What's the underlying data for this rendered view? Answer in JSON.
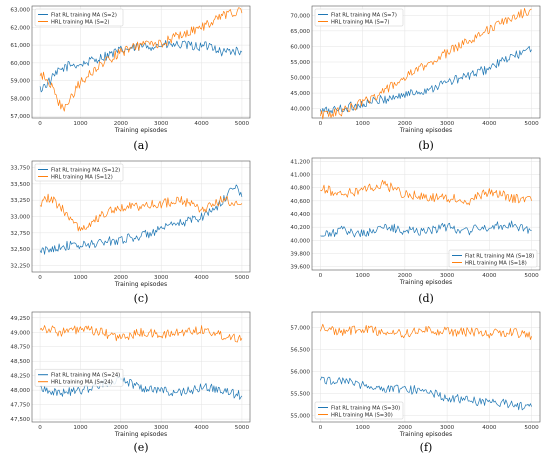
{
  "colors": {
    "flat": "#1f77b4",
    "hrl": "#ff7f0e"
  },
  "chart_data": [
    {
      "type": "line",
      "caption": "(a)",
      "xlabel": "Training episodes",
      "xlim": [
        -200,
        5200
      ],
      "ylim": [
        56900,
        63200
      ],
      "xticks": [
        0,
        1000,
        2000,
        3000,
        4000,
        5000
      ],
      "yticks": [
        57000,
        58000,
        59000,
        60000,
        61000,
        62000,
        63000
      ],
      "legend": "top-left",
      "grid": true,
      "series": [
        {
          "name": "Flat RL training MA (S=2)",
          "color": "flat",
          "x": [
            0,
            250,
            500,
            750,
            1000,
            1500,
            2000,
            2500,
            3000,
            3500,
            4000,
            4250,
            4500,
            4750,
            5000
          ],
          "y": [
            58500,
            59000,
            59600,
            59900,
            59900,
            60300,
            60700,
            60900,
            61000,
            61000,
            60900,
            61000,
            60600,
            60700,
            60600
          ]
        },
        {
          "name": "HRL training MA (S=2)",
          "color": "hrl",
          "x": [
            0,
            200,
            400,
            600,
            800,
            1000,
            1500,
            2000,
            2500,
            3000,
            3500,
            4000,
            4300,
            4600,
            4800,
            5000
          ],
          "y": [
            59300,
            59100,
            58000,
            57300,
            58200,
            58900,
            59900,
            60600,
            61000,
            61100,
            61600,
            62000,
            62400,
            62700,
            62900,
            62800
          ]
        }
      ]
    },
    {
      "type": "line",
      "caption": "(b)",
      "xlabel": "Training episodes",
      "xlim": [
        -200,
        5200
      ],
      "ylim": [
        37000,
        73000
      ],
      "xticks": [
        0,
        1000,
        2000,
        3000,
        4000,
        5000
      ],
      "yticks": [
        40000,
        45000,
        50000,
        55000,
        60000,
        65000,
        70000
      ],
      "legend": "top-left",
      "grid": true,
      "series": [
        {
          "name": "Flat RL training MA (S=7)",
          "color": "flat",
          "x": [
            0,
            500,
            1000,
            1500,
            2000,
            2500,
            3000,
            3500,
            4000,
            4500,
            5000
          ],
          "y": [
            39000,
            40000,
            41500,
            43000,
            44500,
            46000,
            48500,
            50500,
            53000,
            56500,
            59000
          ]
        },
        {
          "name": "HRL training MA (S=7)",
          "color": "hrl",
          "x": [
            0,
            500,
            1000,
            1500,
            2000,
            2500,
            3000,
            3500,
            4000,
            4500,
            5000
          ],
          "y": [
            38000,
            39000,
            42000,
            45500,
            50000,
            54000,
            58000,
            62000,
            65500,
            69000,
            72000
          ]
        }
      ]
    },
    {
      "type": "line",
      "caption": "(c)",
      "xlabel": "Training episodes",
      "xlim": [
        -200,
        5200
      ],
      "ylim": [
        32150,
        33850
      ],
      "xticks": [
        0,
        1000,
        2000,
        3000,
        4000,
        5000
      ],
      "yticks": [
        32250,
        32500,
        32750,
        33000,
        33250,
        33500,
        33750
      ],
      "legend": "top-left",
      "grid": true,
      "series": [
        {
          "name": "Flat RL training MA (S=12)",
          "color": "flat",
          "x": [
            0,
            500,
            1000,
            1500,
            2000,
            2500,
            3000,
            3500,
            4000,
            4500,
            4800,
            5000
          ],
          "y": [
            32450,
            32550,
            32550,
            32600,
            32650,
            32700,
            32800,
            32900,
            33000,
            33200,
            33500,
            33300
          ]
        },
        {
          "name": "HRL training MA (S=12)",
          "color": "hrl",
          "x": [
            0,
            200,
            500,
            1000,
            1500,
            2000,
            2500,
            3000,
            3500,
            4000,
            4500,
            5000
          ],
          "y": [
            33200,
            33300,
            33150,
            32800,
            33000,
            33150,
            33150,
            33200,
            33250,
            33100,
            33250,
            33200
          ]
        }
      ]
    },
    {
      "type": "line",
      "caption": "(d)",
      "xlabel": "Training episodes",
      "xlim": [
        -200,
        5200
      ],
      "ylim": [
        39550,
        41250
      ],
      "xticks": [
        0,
        1000,
        2000,
        3000,
        4000,
        5000
      ],
      "yticks": [
        39600,
        39800,
        40000,
        40200,
        40400,
        40600,
        40800,
        41000,
        41200
      ],
      "legend": "bottom-right",
      "grid": true,
      "series": [
        {
          "name": "Flat RL training MA (S=18)",
          "color": "flat",
          "x": [
            0,
            500,
            1000,
            1500,
            2000,
            2500,
            3000,
            3500,
            4000,
            4500,
            5000
          ],
          "y": [
            40050,
            40150,
            40100,
            40200,
            40150,
            40150,
            40200,
            40150,
            40200,
            40250,
            40150
          ]
        },
        {
          "name": "HRL training MA (S=18)",
          "color": "hrl",
          "x": [
            0,
            500,
            1000,
            1500,
            2000,
            2500,
            3000,
            3500,
            4000,
            4500,
            5000
          ],
          "y": [
            40800,
            40700,
            40750,
            40850,
            40700,
            40650,
            40650,
            40600,
            40750,
            40650,
            40600
          ]
        }
      ]
    },
    {
      "type": "line",
      "caption": "(e)",
      "xlabel": "Training episodes",
      "xlim": [
        -200,
        5200
      ],
      "ylim": [
        47450,
        49350
      ],
      "xticks": [
        0,
        1000,
        2000,
        3000,
        4000,
        5000
      ],
      "yticks": [
        47500,
        47750,
        48000,
        48250,
        48500,
        48750,
        49000,
        49250
      ],
      "legend": "middle-left",
      "grid": true,
      "series": [
        {
          "name": "Flat RL training MA (S=24)",
          "color": "flat",
          "x": [
            0,
            500,
            1000,
            1500,
            2000,
            2500,
            3000,
            3500,
            4000,
            4500,
            5000
          ],
          "y": [
            48050,
            47950,
            48000,
            48100,
            48200,
            48050,
            48000,
            47950,
            48050,
            48000,
            47900
          ]
        },
        {
          "name": "HRL training MA (S=24)",
          "color": "hrl",
          "x": [
            0,
            500,
            1000,
            1500,
            2000,
            2500,
            3000,
            3500,
            4000,
            4500,
            5000
          ],
          "y": [
            49100,
            49000,
            49050,
            49000,
            48900,
            49000,
            48950,
            49000,
            49050,
            48950,
            48900
          ]
        }
      ]
    },
    {
      "type": "line",
      "caption": "(f)",
      "xlabel": "Training episodes",
      "xlim": [
        -200,
        5200
      ],
      "ylim": [
        54850,
        57350
      ],
      "xticks": [
        0,
        1000,
        2000,
        3000,
        4000,
        5000
      ],
      "yticks": [
        55000,
        55500,
        56000,
        56500,
        57000
      ],
      "legend": "bottom-left",
      "grid": true,
      "series": [
        {
          "name": "Flat RL training MA (S=30)",
          "color": "flat",
          "x": [
            0,
            500,
            1000,
            1500,
            2000,
            2500,
            3000,
            3500,
            4000,
            4500,
            5000
          ],
          "y": [
            55800,
            55800,
            55700,
            55600,
            55600,
            55550,
            55400,
            55350,
            55300,
            55250,
            55200
          ]
        },
        {
          "name": "HRL training MA (S=30)",
          "color": "hrl",
          "x": [
            0,
            500,
            1000,
            1500,
            2000,
            2500,
            3000,
            3500,
            4000,
            4500,
            5000
          ],
          "y": [
            57000,
            56900,
            56950,
            56900,
            56850,
            56950,
            56900,
            56900,
            56850,
            56900,
            56800
          ]
        }
      ]
    }
  ]
}
